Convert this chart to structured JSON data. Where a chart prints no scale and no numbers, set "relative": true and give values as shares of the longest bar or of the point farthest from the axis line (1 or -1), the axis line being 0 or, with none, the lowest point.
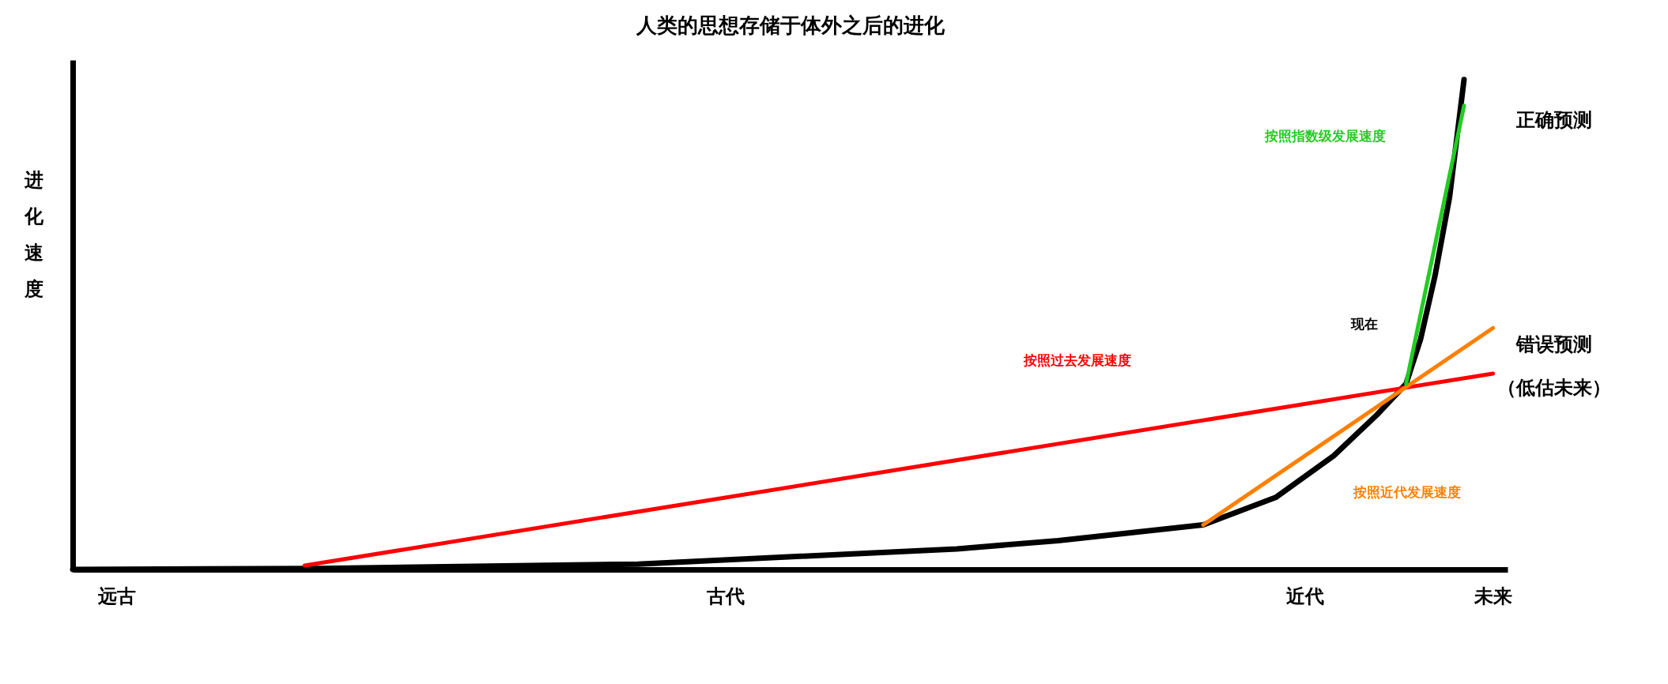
{
  "chart_data": {
    "type": "line",
    "title": "人类的思想存储于体外之后的进化",
    "ylabel": "进化速度",
    "relative": true,
    "categories": [
      null,
      null,
      null,
      "远古",
      null,
      null,
      null,
      null,
      null,
      null,
      null,
      null,
      null,
      null,
      null,
      null,
      null,
      null,
      null,
      null,
      null,
      null,
      null,
      null,
      null,
      null,
      null,
      null,
      null,
      null,
      null,
      null,
      null,
      null,
      null,
      null,
      null,
      null,
      null,
      null,
      null,
      null,
      null,
      null,
      null,
      "古代",
      null,
      null,
      null,
      null,
      null,
      null,
      null,
      null,
      null,
      null,
      null,
      null,
      null,
      null,
      null,
      null,
      null,
      null,
      null,
      null,
      null,
      null,
      null,
      null,
      null,
      null,
      null,
      null,
      null,
      null,
      null,
      null,
      null,
      null,
      null,
      null,
      null,
      null,
      null,
      "近代",
      null,
      null,
      null,
      null,
      null,
      null,
      null,
      null,
      null,
      null,
      null,
      null,
      "未来",
      null
    ],
    "series": [
      {
        "color": "#000000",
        "values": [
          0,
          null,
          null,
          null,
          null,
          null,
          null,
          null,
          null,
          null,
          null,
          null,
          null,
          null,
          null,
          null,
          null,
          0.002,
          null,
          null,
          null,
          null,
          null,
          null,
          null,
          null,
          null,
          null,
          null,
          null,
          null,
          null,
          null,
          null,
          null,
          null,
          null,
          null,
          null,
          0.011,
          null,
          null,
          null,
          null,
          null,
          null,
          null,
          null,
          null,
          null,
          null,
          null,
          null,
          null,
          null,
          null,
          null,
          null,
          null,
          null,
          null,
          0.042,
          null,
          null,
          null,
          null,
          null,
          null,
          0.059,
          null,
          null,
          null,
          null,
          null,
          null,
          null,
          null,
          null,
          0.091,
          null,
          null,
          null,
          null,
          0.147,
          null,
          null,
          null,
          0.232,
          null,
          null,
          0.316,
          null,
          0.379,
          0.47,
          0.6,
          0.76,
          1.0,
          null,
          null,
          null
        ]
      },
      {
        "name": "按照过去发展速度",
        "color": "#ff0000",
        "values": [
          null,
          null,
          null,
          null,
          null,
          null,
          null,
          null,
          null,
          null,
          null,
          null,
          null,
          null,
          null,
          null,
          0.008,
          null,
          null,
          null,
          null,
          null,
          null,
          null,
          null,
          null,
          null,
          null,
          null,
          null,
          null,
          null,
          null,
          null,
          null,
          null,
          null,
          null,
          null,
          null,
          null,
          null,
          null,
          null,
          null,
          null,
          null,
          null,
          null,
          null,
          null,
          null,
          null,
          null,
          null,
          null,
          null,
          null,
          null,
          null,
          null,
          null,
          null,
          null,
          null,
          null,
          null,
          null,
          null,
          null,
          null,
          null,
          null,
          null,
          null,
          null,
          null,
          null,
          null,
          null,
          null,
          null,
          null,
          null,
          null,
          null,
          null,
          null,
          null,
          null,
          null,
          null,
          null,
          null,
          null,
          null,
          null,
          null,
          0.4,
          null
        ]
      },
      {
        "name": "按照近代发展速度",
        "color": "#ff8000",
        "values": [
          null,
          null,
          null,
          null,
          null,
          null,
          null,
          null,
          null,
          null,
          null,
          null,
          null,
          null,
          null,
          null,
          null,
          null,
          null,
          null,
          null,
          null,
          null,
          null,
          null,
          null,
          null,
          null,
          null,
          null,
          null,
          null,
          null,
          null,
          null,
          null,
          null,
          null,
          null,
          null,
          null,
          null,
          null,
          null,
          null,
          null,
          null,
          null,
          null,
          null,
          null,
          null,
          null,
          null,
          null,
          null,
          null,
          null,
          null,
          null,
          null,
          null,
          null,
          null,
          null,
          null,
          null,
          null,
          null,
          null,
          null,
          null,
          null,
          null,
          null,
          null,
          null,
          null,
          0.091,
          null,
          null,
          null,
          null,
          null,
          null,
          null,
          null,
          null,
          null,
          null,
          null,
          null,
          null,
          null,
          null,
          null,
          null,
          null,
          0.493,
          null
        ]
      },
      {
        "name": "按照指数级发展速度",
        "color": "#22cc22",
        "values": [
          null,
          null,
          null,
          null,
          null,
          null,
          null,
          null,
          null,
          null,
          null,
          null,
          null,
          null,
          null,
          null,
          null,
          null,
          null,
          null,
          null,
          null,
          null,
          null,
          null,
          null,
          null,
          null,
          null,
          null,
          null,
          null,
          null,
          null,
          null,
          null,
          null,
          null,
          null,
          null,
          null,
          null,
          null,
          null,
          null,
          null,
          null,
          null,
          null,
          null,
          null,
          null,
          null,
          null,
          null,
          null,
          null,
          null,
          null,
          null,
          null,
          null,
          null,
          null,
          null,
          null,
          null,
          null,
          null,
          null,
          null,
          null,
          null,
          null,
          null,
          null,
          null,
          null,
          null,
          null,
          null,
          null,
          null,
          null,
          null,
          null,
          null,
          null,
          null,
          null,
          null,
          null,
          0.379,
          null,
          null,
          null,
          0.947,
          null,
          null,
          null
        ]
      }
    ],
    "annotations": [
      "现在",
      "正确预测",
      "错误预测",
      "（低估未来）"
    ]
  }
}
